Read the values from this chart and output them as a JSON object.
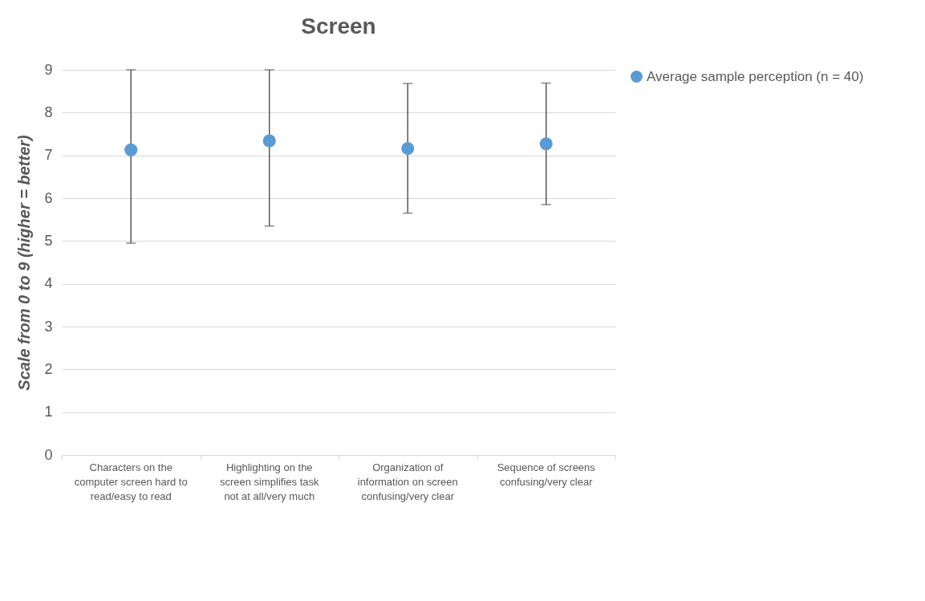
{
  "chart_data": {
    "type": "scatter",
    "title": "Screen",
    "ylabel": "Scale from 0 to 9 (higher = better)",
    "categories": [
      "Characters on the computer screen hard to read/easy to read",
      "Highlighting on the screen simplifies task not at all/very much",
      "Organization of information on screen confusing/very clear",
      "Sequence of screens confusing/very clear"
    ],
    "series": [
      {
        "name": "Average sample perception (n = 40)",
        "color": "#5b9bd5",
        "values": [
          7.13,
          7.34,
          7.16,
          7.27
        ],
        "errors": [
          [
            4.95,
            9.0
          ],
          [
            5.35,
            9.0
          ],
          [
            5.65,
            8.68
          ],
          [
            5.85,
            8.69
          ]
        ]
      }
    ],
    "ylim": [
      0,
      9
    ],
    "yticks": [
      0,
      1,
      2,
      3,
      4,
      5,
      6,
      7,
      8,
      9
    ],
    "grid": "y",
    "legend": "right",
    "marker": "circle"
  }
}
